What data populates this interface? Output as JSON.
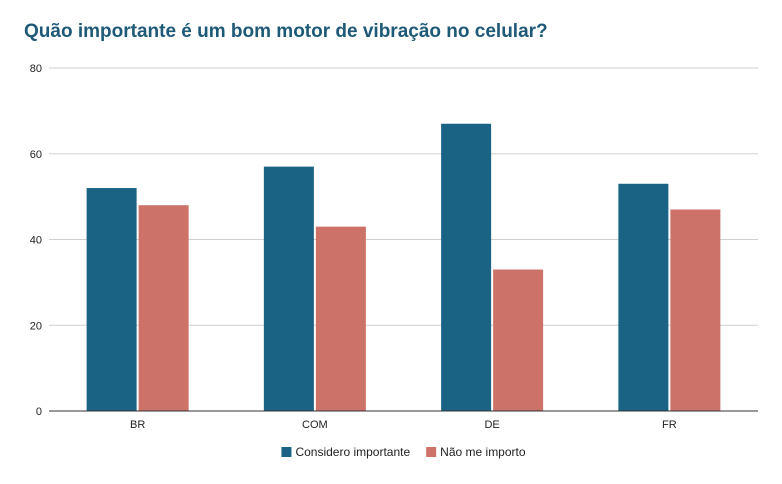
{
  "chart_data": {
    "type": "bar",
    "title": "Quão importante é um bom motor de vibração no celular?",
    "xlabel": "",
    "ylabel": "",
    "categories": [
      "BR",
      "COM",
      "DE",
      "FR"
    ],
    "series": [
      {
        "name": "Considero importante",
        "color": "#1a6385",
        "values": [
          52,
          57,
          67,
          53
        ]
      },
      {
        "name": "Não me importo",
        "color": "#cd7269",
        "values": [
          48,
          43,
          33,
          47
        ]
      }
    ],
    "ylim": [
      0,
      80
    ],
    "yticks": [
      "0",
      "20",
      "40",
      "60",
      "80"
    ],
    "grid": true,
    "legend_position": "bottom"
  }
}
